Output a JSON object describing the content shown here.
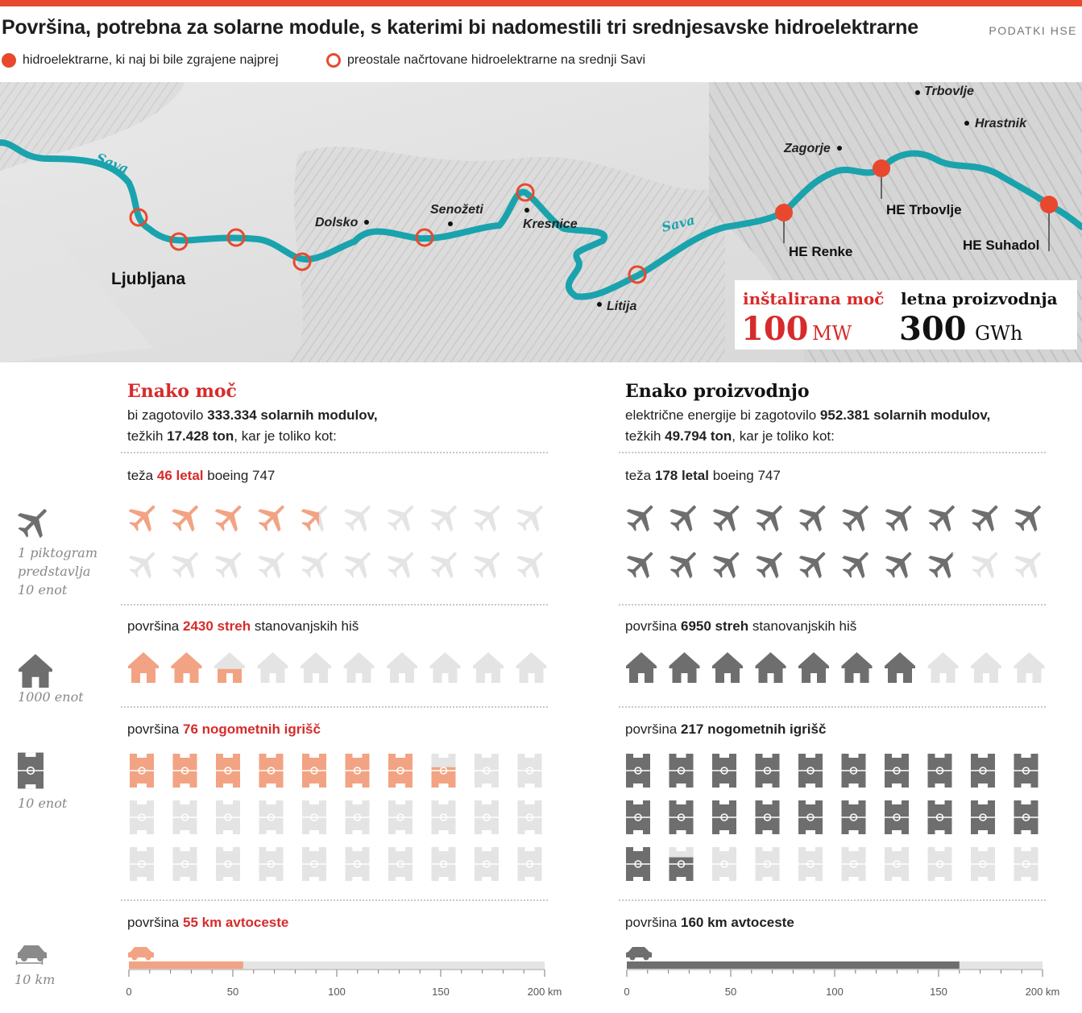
{
  "title": "Površina, potrebna za solarne module, s katerimi bi nadomestili tri srednjesavske hidroelektrarne",
  "source": "PODATKI HSE",
  "legend": {
    "filled": "hidroelektrarne, ki naj bi bile zgrajene najprej",
    "open": "preostale načrtovane hidroelektrarne na srednji Savi"
  },
  "map": {
    "river_labels": [
      "Sava",
      "Sava"
    ],
    "places": {
      "ljubljana": "Ljubljana",
      "dolsko": "Dolsko",
      "senozeti": "Senožeti",
      "kresnice": "Kresnice",
      "litija": "Litija",
      "zagorje": "Zagorje",
      "trbovlje": "Trbovlje",
      "hrastnik": "Hrastnik"
    },
    "plants": {
      "renke": "HE Renke",
      "trbovlje": "HE Trbovlje",
      "suhadol": "HE Suhadol"
    },
    "stats": {
      "power_label": "inštalirana moč",
      "power_value": "100",
      "power_unit": "MW",
      "prod_label": "letna proizvodnja",
      "prod_value": "300",
      "prod_unit": "GWh"
    },
    "colors": {
      "river": "#1aa3ad",
      "accent": "#e8492e"
    }
  },
  "left": {
    "heading": "Enako moč",
    "line1_pre": "bi zagotovilo ",
    "line1_num": "333.334",
    "line1_post": " solarnih modulov,",
    "line2_pre": "težkih ",
    "line2_num": "17.428 ton",
    "line2_post": ", kar je toliko kot:",
    "planes": {
      "pre": "teža ",
      "bold": "46 letal",
      "post": " boeing 747",
      "value": 46
    },
    "houses": {
      "pre": "površina ",
      "bold": "2430 streh",
      "post": " stanovanjskih hiš",
      "value": 2430
    },
    "fields": {
      "pre": "površina ",
      "bold": "76 nogometnih igrišč",
      "post": "",
      "value": 76
    },
    "road": {
      "pre": "površina ",
      "bold": "55 km avtoceste",
      "post": "",
      "value": 55
    }
  },
  "right": {
    "heading": "Enako proizvodnjo",
    "line1_pre": "električne energije bi zagotovilo ",
    "line1_num": "952.381",
    "line1_post": " solarnih modulov,",
    "line2_pre": "težkih ",
    "line2_num": "49.794 ton",
    "line2_post": ", kar je toliko kot:",
    "planes": {
      "pre": "teža ",
      "bold": "178 letal",
      "post": " boeing 747",
      "value": 178
    },
    "houses": {
      "pre": "površina ",
      "bold": "6950 streh",
      "post": " stanovanjskih hiš",
      "value": 6950
    },
    "fields": {
      "pre": "površina ",
      "bold": "217 nogometnih igrišč",
      "post": "",
      "value": 217
    },
    "road": {
      "pre": "površina ",
      "bold": "160 km avtoceste",
      "post": "",
      "value": 160
    }
  },
  "notes": {
    "planes": [
      "1 piktogram",
      "predstavlja",
      "10 enot"
    ],
    "houses": "1000 enot",
    "fields": "10 enot",
    "road": "10 km"
  },
  "axis_ticks": [
    "0",
    "50",
    "100",
    "150",
    "200 km"
  ],
  "axis_max": 200,
  "colors": {
    "left": "#f2a383",
    "right": "#6e6e6e",
    "empty": "#e4e4e4",
    "left_text": "#d72b2b"
  }
}
